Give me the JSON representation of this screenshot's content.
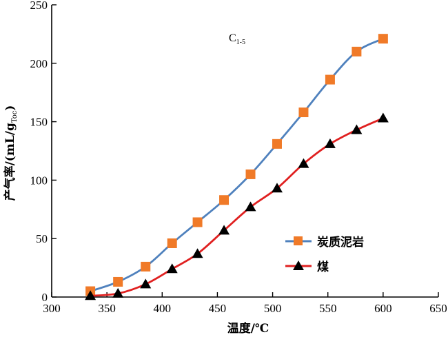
{
  "chart_data": {
    "type": "line",
    "xlabel": "温度/℃",
    "ylabel_main": "产气率/(mL/g",
    "ylabel_sub": "Toc",
    "ylabel_close": ")",
    "annotation": {
      "main": "C",
      "sub": "1-5"
    },
    "xlim": [
      300,
      650
    ],
    "ylim": [
      0,
      250
    ],
    "xticks": [
      300,
      350,
      400,
      450,
      500,
      550,
      600,
      650
    ],
    "yticks": [
      0,
      50,
      100,
      150,
      200,
      250
    ],
    "legend_position": "lower-right",
    "grid": false,
    "series": [
      {
        "name": "炭质泥岩",
        "color": "#4f81bd",
        "marker": "square",
        "marker_color": "#f07a28",
        "x": [
          335,
          360,
          385,
          409,
          432,
          456,
          480,
          504,
          528,
          552,
          576,
          600
        ],
        "values": [
          5,
          13,
          26,
          46,
          64,
          83,
          105,
          131,
          158,
          186,
          210,
          221
        ]
      },
      {
        "name": "煤",
        "color": "#e02020",
        "marker": "triangle",
        "marker_color": "#000000",
        "x": [
          335,
          360,
          385,
          409,
          432,
          456,
          480,
          504,
          528,
          552,
          576,
          600
        ],
        "values": [
          1,
          3,
          11,
          24,
          37,
          57,
          77,
          93,
          114,
          131,
          143,
          153
        ]
      }
    ]
  }
}
